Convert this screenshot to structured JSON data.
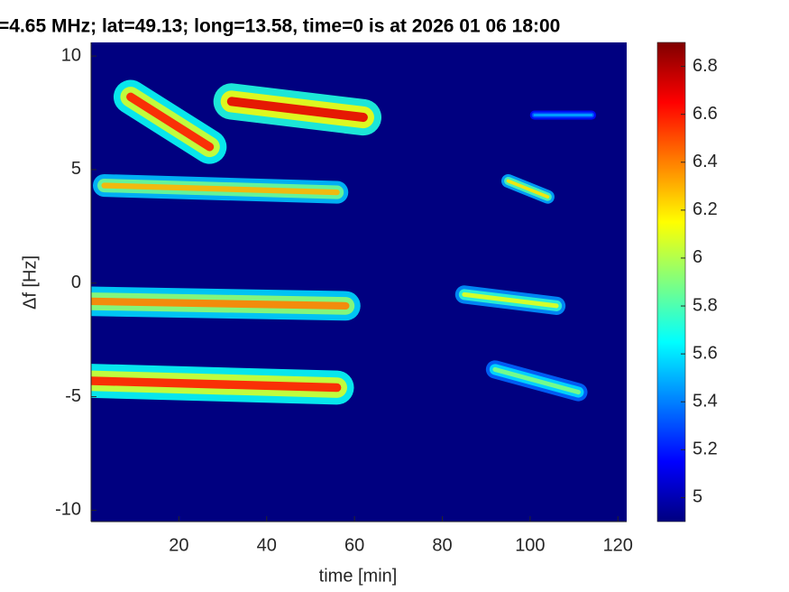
{
  "chart_data": {
    "type": "spectrogram",
    "title": "=4.65 MHz;  lat=49.13; long=13.58, time=0 is at 2026 01 06 18:00",
    "x_label": "time [min]",
    "y_label": "Δf [Hz]",
    "xlim": [
      0,
      122
    ],
    "xticks": [
      20,
      40,
      60,
      80,
      100,
      120
    ],
    "ylim": [
      -10.5,
      10.6
    ],
    "yticks": [
      -10,
      -5,
      0,
      5,
      10
    ],
    "clim": [
      4.9,
      6.9
    ],
    "cticks": [
      5,
      5.2,
      5.4,
      5.6,
      5.8,
      6,
      6.2,
      6.4,
      6.6,
      6.8
    ],
    "colormap": "jet",
    "streaks": [
      {
        "t": [
          9,
          27
        ],
        "f": [
          8.2,
          6.0
        ],
        "df": 1.5,
        "peak": 6.6
      },
      {
        "t": [
          32,
          62
        ],
        "f": [
          8.0,
          7.3
        ],
        "df": 1.6,
        "peak": 6.7
      },
      {
        "t": [
          3,
          56
        ],
        "f": [
          4.3,
          4.0
        ],
        "df": 1.0,
        "peak": 6.3
      },
      {
        "t": [
          0,
          58
        ],
        "f": [
          -0.8,
          -1.0
        ],
        "df": 1.3,
        "peak": 6.4
      },
      {
        "t": [
          0,
          56
        ],
        "f": [
          -4.3,
          -4.6
        ],
        "df": 1.5,
        "peak": 6.6
      },
      {
        "t": [
          85,
          106
        ],
        "f": [
          -0.5,
          -1.0
        ],
        "df": 0.8,
        "peak": 6.1
      },
      {
        "t": [
          92,
          111
        ],
        "f": [
          -3.8,
          -4.8
        ],
        "df": 0.8,
        "peak": 5.9
      },
      {
        "t": [
          95,
          104
        ],
        "f": [
          4.5,
          3.8
        ],
        "df": 0.6,
        "peak": 6.2
      },
      {
        "t": [
          101,
          114
        ],
        "f": [
          7.4,
          7.4
        ],
        "df": 0.4,
        "peak": 5.5
      }
    ]
  }
}
